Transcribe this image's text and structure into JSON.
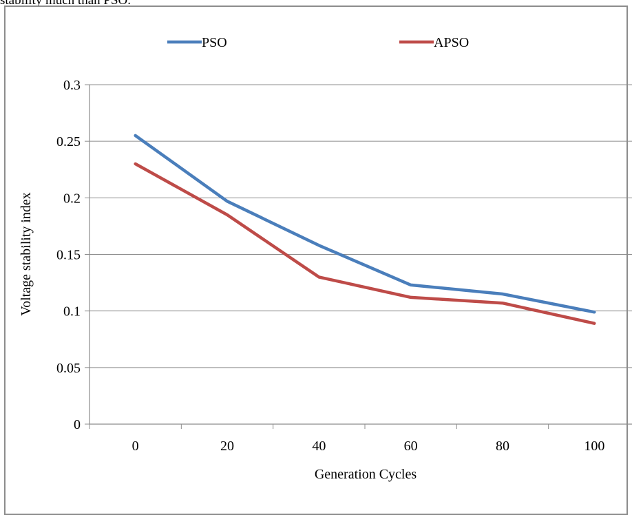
{
  "caption_fragment": "stability much than PSO.",
  "chart_data": {
    "type": "line",
    "title": "",
    "xlabel": "Generation Cycles",
    "ylabel": "Voltage stability index",
    "categories": [
      "0",
      "20",
      "40",
      "60",
      "80",
      "100"
    ],
    "ylim": [
      0,
      0.3
    ],
    "yticks": [
      "0",
      "0.05",
      "0.1",
      "0.15",
      "0.2",
      "0.25",
      "0.3"
    ],
    "grid": true,
    "legend": "top",
    "series": [
      {
        "name": "PSO",
        "color": "#4a7ebb",
        "values": [
          0.255,
          0.197,
          0.158,
          0.123,
          0.115,
          0.099
        ]
      },
      {
        "name": "APSO",
        "color": "#be4b48",
        "values": [
          0.23,
          0.185,
          0.13,
          0.112,
          0.107,
          0.089
        ]
      }
    ]
  }
}
